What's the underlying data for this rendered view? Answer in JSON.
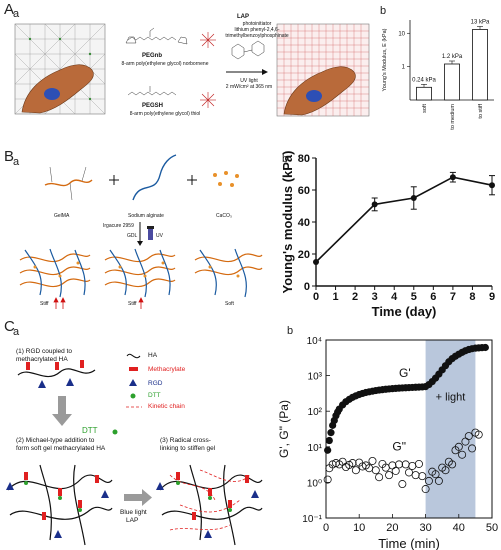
{
  "panelA": {
    "letter": "A",
    "sub_a": "a",
    "sub_b": "b",
    "pegnb_name": "PEGnb",
    "pegnb_desc": "8-arm poly(ethylene glycol) norbornene",
    "pegsh_name": "PEGSH",
    "pegsh_desc": "8-arm poly(ethylene glycol) thiol",
    "lap_title": "LAP",
    "lap_desc": [
      "photoinitiator",
      "lithium phenyl-2,4,6-",
      "trimethylbenzoylphosphinate"
    ],
    "uv_desc": [
      "UV light",
      "2 mW/cm² at 365 nm"
    ],
    "chart_data": {
      "type": "bar",
      "categories": [
        "soft",
        "to medium",
        "to stiff"
      ],
      "values": [
        0.24,
        1.2,
        13
      ],
      "data_labels": [
        "0.24 kPa",
        "1.2 kPa",
        "13 kPa"
      ],
      "ylabel": "Young's Modulus, E (kPa)",
      "yscale": "log",
      "ylim": [
        0.1,
        25
      ],
      "yticks": [
        "1",
        "10"
      ]
    }
  },
  "panelB": {
    "letter": "B",
    "sub_a": "a",
    "sub_b": "b",
    "labels": {
      "gelma": "GelMA",
      "alginate": "Sodium alginate",
      "caco3": "CaCO₃",
      "irgacure": "Irgacure 2959",
      "gdl": "GDL",
      "uv": "UV",
      "stiff1": "Stiff",
      "stiff2": "Stiff",
      "soft": "Soft"
    },
    "chart_data": {
      "type": "line",
      "x": [
        0,
        3,
        5,
        7,
        9
      ],
      "y": [
        15,
        51,
        55,
        68,
        63
      ],
      "yerr": [
        0,
        4,
        7,
        3,
        6
      ],
      "xlabel": "Time (day)",
      "ylabel": "Young's modulus (kPa)",
      "xlim": [
        0,
        9
      ],
      "ylim": [
        0,
        80
      ],
      "xticks": [
        "0",
        "1",
        "2",
        "3",
        "4",
        "5",
        "6",
        "7",
        "8",
        "9"
      ],
      "yticks": [
        "0",
        "20",
        "40",
        "60",
        "80"
      ]
    }
  },
  "panelC": {
    "letter": "C",
    "sub_a": "a",
    "sub_b": "b",
    "steps": {
      "step1": [
        "(1) RGD coupled to",
        "methacrylated HA"
      ],
      "step2": [
        "(2) Michael-type addition to",
        "form soft gel methacrylated HA"
      ],
      "step3": [
        "(3) Radical cross-",
        "linking to stiffen gel"
      ]
    },
    "legend": {
      "ha": "HA",
      "methacrylate": "Methacrylate",
      "rgd": "RGD",
      "dtt": "DTT",
      "kinetic": "Kinetic chain"
    },
    "dtt_label": "DTT",
    "arrow_label": [
      "Blue light",
      "LAP"
    ],
    "chart_data": {
      "type": "scatter",
      "xlabel": "Time (min)",
      "ylabel": "G', G\" (Pa)",
      "yscale": "log",
      "xlim": [
        0,
        50
      ],
      "ylim": [
        0.1,
        10000
      ],
      "xticks": [
        "0",
        "10",
        "20",
        "30",
        "40",
        "50"
      ],
      "yticks": [
        "10⁻¹",
        "10⁰",
        "10¹",
        "10²",
        "10³",
        "10⁴"
      ],
      "series": [
        {
          "name": "G'",
          "x": [
            0.5,
            1,
            1.5,
            2,
            2.5,
            3,
            3.5,
            4,
            5,
            6,
            7,
            8,
            9,
            10,
            11,
            12,
            13,
            14,
            15,
            16,
            17,
            18,
            19,
            20,
            21,
            22,
            23,
            24,
            25,
            26,
            27,
            28,
            29,
            30,
            31,
            32,
            33,
            34,
            35,
            36,
            37,
            38,
            39,
            40,
            41,
            42,
            43,
            44,
            45,
            46,
            47,
            48
          ],
          "y": [
            8,
            15,
            25,
            40,
            55,
            75,
            95,
            115,
            150,
            185,
            215,
            245,
            270,
            295,
            315,
            335,
            350,
            365,
            380,
            392,
            403,
            413,
            422,
            430,
            437,
            444,
            450,
            455,
            460,
            465,
            470,
            475,
            480,
            490,
            560,
            680,
            850,
            1100,
            1450,
            1900,
            2450,
            3000,
            3500,
            4000,
            4500,
            5000,
            5400,
            5700,
            5900,
            6000,
            6100,
            6150
          ]
        },
        {
          "name": "G\"",
          "x": [
            0.5,
            1,
            2,
            3,
            4,
            5,
            6,
            7,
            8,
            9,
            10,
            11,
            12,
            13,
            14,
            15,
            16,
            17,
            18,
            19,
            20,
            21,
            22,
            23,
            24,
            25,
            26,
            27,
            28,
            29,
            30,
            31,
            32,
            33,
            34,
            35,
            36,
            37,
            38,
            39,
            40,
            41,
            42,
            43,
            44,
            45,
            46
          ],
          "y": [
            1.2,
            2.5,
            3.2,
            3.5,
            3.2,
            3.8,
            2.7,
            3.1,
            3.5,
            2.2,
            3.6,
            2.8,
            3.0,
            2.5,
            4.0,
            2.2,
            1.4,
            3.3,
            2.6,
            1.6,
            3.0,
            2.1,
            3.2,
            0.9,
            3.2,
            1.9,
            2.9,
            1.6,
            3.3,
            1.5,
            0.65,
            1.1,
            2.0,
            1.7,
            1.1,
            2.6,
            2.2,
            3.8,
            3.2,
            8,
            10,
            6,
            14,
            20,
            9,
            25,
            22
          ]
        }
      ],
      "annotation": "+ light",
      "shaded_x": [
        30,
        45
      ]
    }
  }
}
